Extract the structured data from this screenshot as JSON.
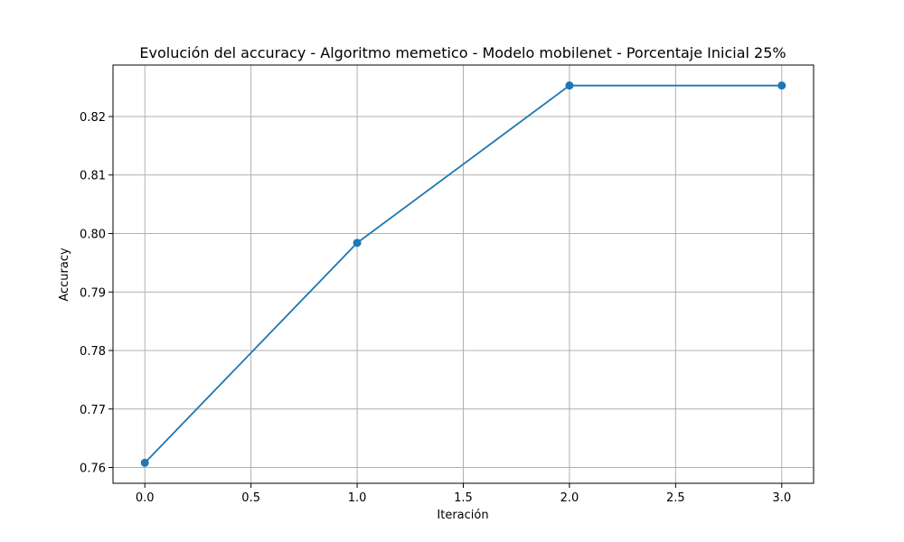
{
  "chart_data": {
    "type": "line",
    "title": "Evolución del accuracy - Algoritmo memetico - Modelo mobilenet - Porcentaje Inicial 25%",
    "xlabel": "Iteración",
    "ylabel": "Accuracy",
    "x": [
      0,
      1,
      2,
      3
    ],
    "series": [
      {
        "values": [
          0.7608,
          0.7984,
          0.8253,
          0.8253
        ]
      }
    ],
    "xlim": [
      -0.15,
      3.15
    ],
    "ylim": [
      0.7573,
      0.8288
    ],
    "xticks": [
      0.0,
      0.5,
      1.0,
      1.5,
      2.0,
      2.5,
      3.0
    ],
    "xtick_labels": [
      "0.0",
      "0.5",
      "1.0",
      "1.5",
      "2.0",
      "2.5",
      "3.0"
    ],
    "yticks": [
      0.76,
      0.77,
      0.78,
      0.79,
      0.8,
      0.81,
      0.82
    ],
    "ytick_labels": [
      "0.76",
      "0.77",
      "0.78",
      "0.79",
      "0.80",
      "0.81",
      "0.82"
    ],
    "grid": true,
    "marker": "circle",
    "line_color": "#1f77b4",
    "grid_color": "#b0b0b0"
  }
}
